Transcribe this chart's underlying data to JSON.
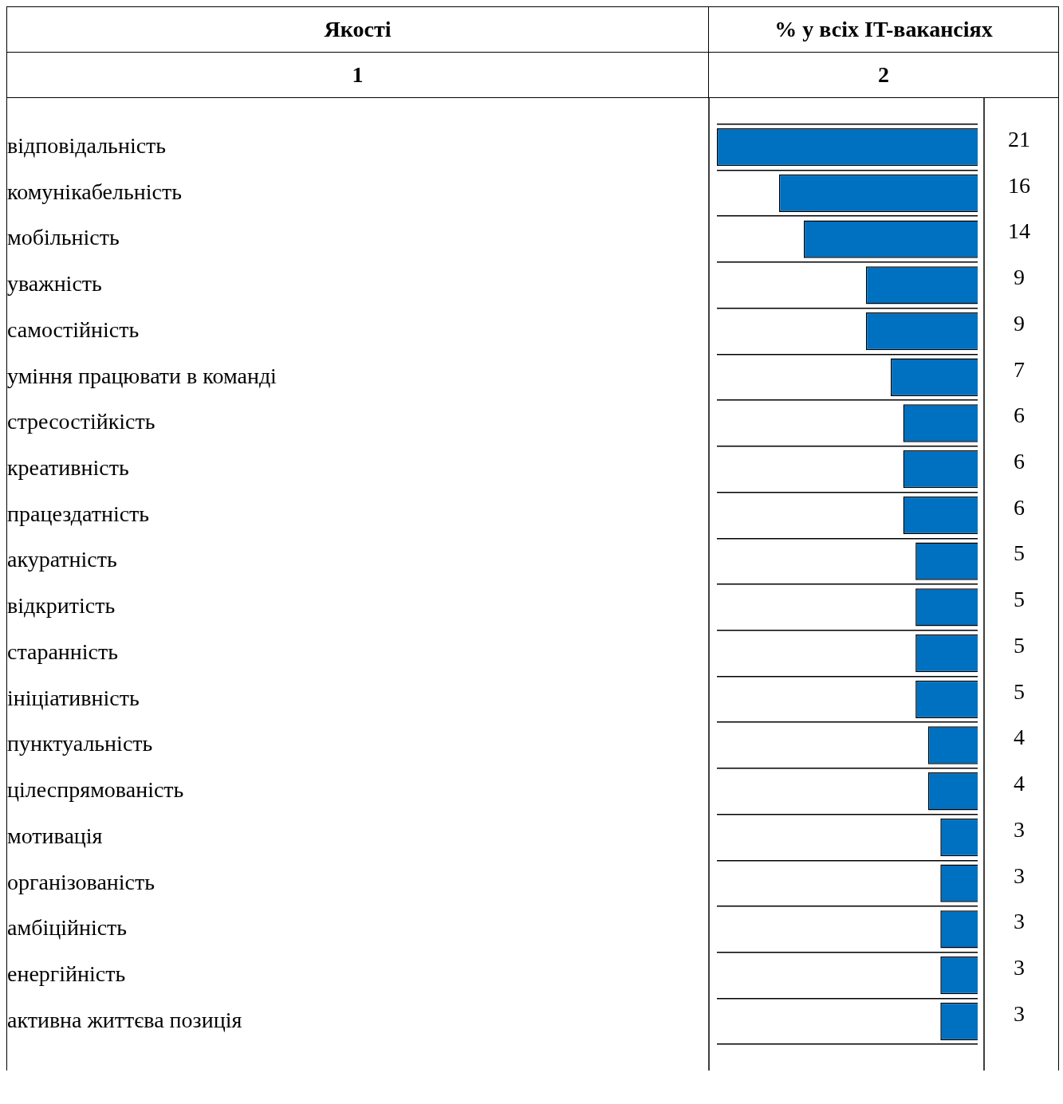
{
  "chart_data": {
    "type": "bar",
    "orientation": "horizontal",
    "ylabel": "Якості",
    "xlabel": "%  у всіх IT-вакансіях",
    "annotations": [
      "1",
      "2"
    ],
    "categories": [
      "відповідальність",
      "комунікабельність",
      "мобільність",
      "уважність",
      "самостійність",
      "уміння працювати в команді",
      "стресостійкість",
      "креативність",
      "працездатність",
      "акуратність",
      "відкритість",
      "старанність",
      "ініціативність",
      "пунктуальність",
      "цілеспрямованість",
      "мотивація",
      "організованість",
      "амбіційність",
      "енергійність",
      "активна життєва позиція"
    ],
    "values": [
      21,
      16,
      14,
      9,
      9,
      7,
      6,
      6,
      6,
      5,
      5,
      5,
      5,
      4,
      4,
      3,
      3,
      3,
      3,
      3
    ],
    "color": "#0070c0",
    "data_labels": true,
    "grid": "y"
  }
}
